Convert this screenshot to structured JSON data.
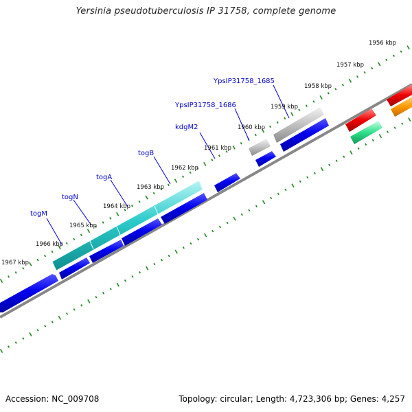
{
  "title": "Yersinia pseudotuberculosis IP 31758, complete genome",
  "footer": {
    "accession_text": "Accession: NC_009708",
    "stats_text": "Topology: circular; Length: 4,723,306 bp; Genes: 4,257"
  },
  "scale_labels": [
    "1956 kbp",
    "1957 kbp",
    "1958 kbp",
    "1959 kbp",
    "1960 kbp",
    "1961 kbp",
    "1962 kbp",
    "1963 kbp",
    "1964 kbp",
    "1965 kbp",
    "1966 kbp",
    "1967 kbp"
  ],
  "gene_labels": [
    "YpsIP31758_1685",
    "YpsIP31758_1686",
    "kdgM2",
    "togB",
    "togA",
    "togN",
    "togM"
  ],
  "colors": {
    "cds": "#0000e6",
    "operon": "#22c4c4",
    "gray_feature": "#b8b8b8",
    "red_feature": "#ee0000",
    "orange_feature": "#ff9900",
    "green_feature": "#2ee08a",
    "tick": "#228822",
    "backbone": "#808080",
    "gene_label": "#0000cc"
  }
}
